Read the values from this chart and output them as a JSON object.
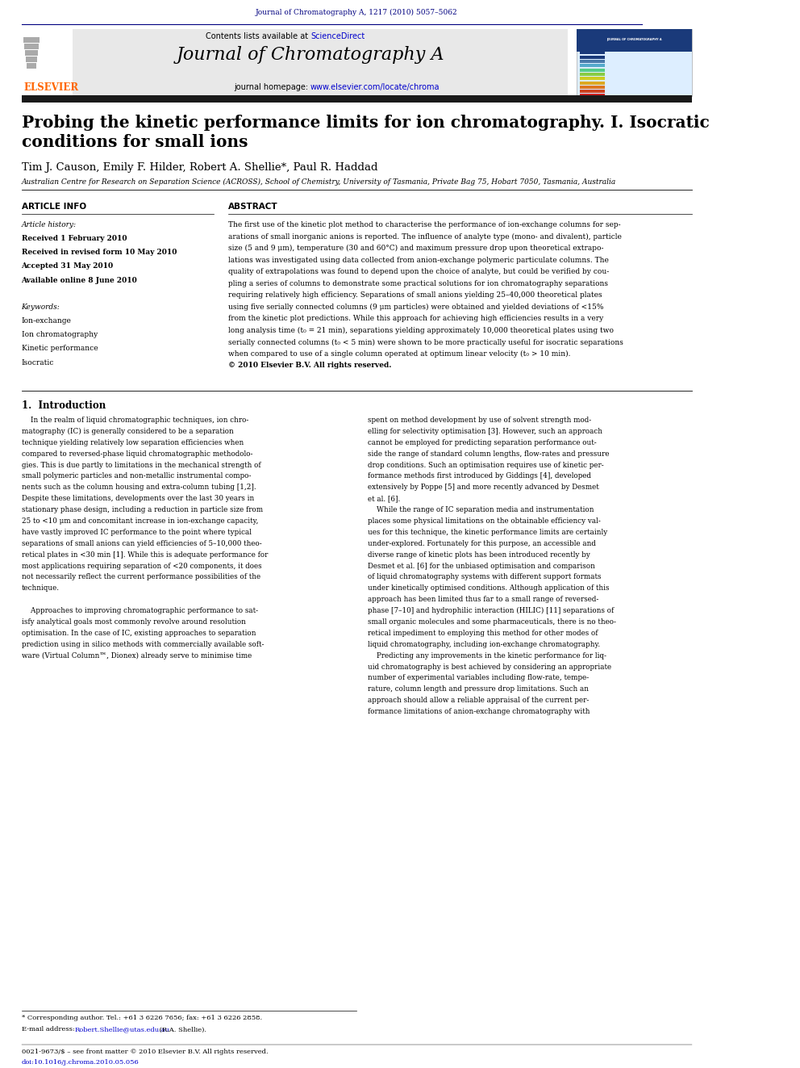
{
  "page_width": 9.92,
  "page_height": 13.23,
  "bg_color": "#ffffff",
  "header_journal_ref": "Journal of Chromatography A, 1217 (2010) 5057–5062",
  "header_journal_ref_color": "#000080",
  "journal_name": "Journal of Chromatography A",
  "journal_url": "www.elsevier.com/locate/chroma",
  "contents_text": "Contents lists available at ScienceDirect",
  "sciencedirect_color": "#0000cc",
  "elsevier_color": "#ff6600",
  "header_bg": "#e8e8e8",
  "dark_bar_color": "#1a1a1a",
  "title": "Probing the kinetic performance limits for ion chromatography. I. Isocratic\nconditions for small ions",
  "authors": "Tim J. Causon, Emily F. Hilder, Robert A. Shellie*, Paul R. Haddad",
  "affiliation": "Australian Centre for Research on Separation Science (ACROSS), School of Chemistry, University of Tasmania, Private Bag 75, Hobart 7050, Tasmania, Australia",
  "article_info_header": "ARTICLE INFO",
  "abstract_header": "ABSTRACT",
  "article_history_label": "Article history:",
  "received_1": "Received 1 February 2010",
  "received_2": "Received in revised form 10 May 2010",
  "accepted": "Accepted 31 May 2010",
  "available": "Available online 8 June 2010",
  "keywords_label": "Keywords:",
  "keyword1": "Ion-exchange",
  "keyword2": "Ion chromatography",
  "keyword3": "Kinetic performance",
  "keyword4": "Isocratic",
  "abstract_lines": [
    "The first use of the kinetic plot method to characterise the performance of ion-exchange columns for sep-",
    "arations of small inorganic anions is reported. The influence of analyte type (mono- and divalent), particle",
    "size (5 and 9 μm), temperature (30 and 60°C) and maximum pressure drop upon theoretical extrapo-",
    "lations was investigated using data collected from anion-exchange polymeric particulate columns. The",
    "quality of extrapolations was found to depend upon the choice of analyte, but could be verified by cou-",
    "pling a series of columns to demonstrate some practical solutions for ion chromatography separations",
    "requiring relatively high efficiency. Separations of small anions yielding 25–40,000 theoretical plates",
    "using five serially connected columns (9 μm particles) were obtained and yielded deviations of <15%",
    "from the kinetic plot predictions. While this approach for achieving high efficiencies results in a very",
    "long analysis time (t₀ = 21 min), separations yielding approximately 10,000 theoretical plates using two",
    "serially connected columns (t₀ < 5 min) were shown to be more practically useful for isocratic separations",
    "when compared to use of a single column operated at optimum linear velocity (t₀ > 10 min).",
    "© 2010 Elsevier B.V. All rights reserved."
  ],
  "section1_title": "1.  Introduction",
  "col1_lines": [
    "    In the realm of liquid chromatographic techniques, ion chro-",
    "matography (IC) is generally considered to be a separation",
    "technique yielding relatively low separation efficiencies when",
    "compared to reversed-phase liquid chromatographic methodolo-",
    "gies. This is due partly to limitations in the mechanical strength of",
    "small polymeric particles and non-metallic instrumental compo-",
    "nents such as the column housing and extra-column tubing [1,2].",
    "Despite these limitations, developments over the last 30 years in",
    "stationary phase design, including a reduction in particle size from",
    "25 to <10 μm and concomitant increase in ion-exchange capacity,",
    "have vastly improved IC performance to the point where typical",
    "separations of small anions can yield efficiencies of 5–10,000 theo-",
    "retical plates in <30 min [1]. While this is adequate performance for",
    "most applications requiring separation of <20 components, it does",
    "not necessarily reflect the current performance possibilities of the",
    "technique.",
    "",
    "    Approaches to improving chromatographic performance to sat-",
    "isfy analytical goals most commonly revolve around resolution",
    "optimisation. In the case of IC, existing approaches to separation",
    "prediction using in silico methods with commercially available soft-",
    "ware (Virtual Column™, Dionex) already serve to minimise time"
  ],
  "col2_lines": [
    "spent on method development by use of solvent strength mod-",
    "elling for selectivity optimisation [3]. However, such an approach",
    "cannot be employed for predicting separation performance out-",
    "side the range of standard column lengths, flow-rates and pressure",
    "drop conditions. Such an optimisation requires use of kinetic per-",
    "formance methods first introduced by Giddings [4], developed",
    "extensively by Poppe [5] and more recently advanced by Desmet",
    "et al. [6].",
    "    While the range of IC separation media and instrumentation",
    "places some physical limitations on the obtainable efficiency val-",
    "ues for this technique, the kinetic performance limits are certainly",
    "under-explored. Fortunately for this purpose, an accessible and",
    "diverse range of kinetic plots has been introduced recently by",
    "Desmet et al. [6] for the unbiased optimisation and comparison",
    "of liquid chromatography systems with different support formats",
    "under kinetically optimised conditions. Although application of this",
    "approach has been limited thus far to a small range of reversed-",
    "phase [7–10] and hydrophilic interaction (HILIC) [11] separations of",
    "small organic molecules and some pharmaceuticals, there is no theo-",
    "retical impediment to employing this method for other modes of",
    "liquid chromatography, including ion-exchange chromatography.",
    "    Predicting any improvements in the kinetic performance for liq-",
    "uid chromatography is best achieved by considering an appropriate",
    "number of experimental variables including flow-rate, tempe-",
    "rature, column length and pressure drop limitations. Such an",
    "approach should allow a reliable appraisal of the current per-",
    "formance limitations of anion-exchange chromatography with"
  ],
  "footnote_star": "* Corresponding author. Tel.: +61 3 6226 7656; fax: +61 3 6226 2858.",
  "footnote_email_prefix": "E-mail address: ",
  "footnote_email_link": "Robert.Shellie@utas.edu.au",
  "footnote_email_suffix": " (R.A. Shellie).",
  "footer_issn": "0021-9673/$ – see front matter © 2010 Elsevier B.V. All rights reserved.",
  "footer_doi": "doi:10.1016/j.chroma.2010.05.056",
  "thumb_colors": [
    "#1a3a7a",
    "#1a3a7a",
    "#4a7aaa",
    "#55aacc",
    "#55cc88",
    "#88cc44",
    "#cccc22",
    "#ddaa22",
    "#dd7722",
    "#cc4422",
    "#cc2222"
  ]
}
